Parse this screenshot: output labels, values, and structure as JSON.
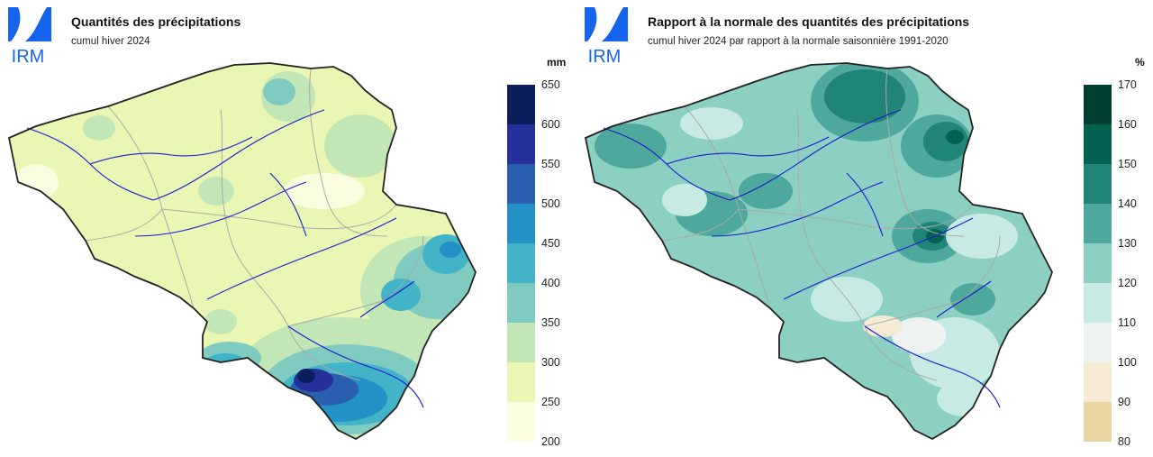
{
  "logo": {
    "text": "IRM",
    "color": "#1464f0"
  },
  "left": {
    "title": "Quantités des précipitations",
    "subtitle": "cumul hiver 2024",
    "unit": "mm",
    "legend": {
      "ticks": [
        "650",
        "600",
        "550",
        "500",
        "450",
        "400",
        "350",
        "300",
        "250",
        "200"
      ],
      "colors": [
        "#0b1f5c",
        "#26309a",
        "#2a5fb0",
        "#2292c6",
        "#43b4c8",
        "#80cbbf",
        "#c3e6b6",
        "#e9f6b4",
        "#fbfde0"
      ]
    },
    "map_colors": {
      "base": "#e9f6b4",
      "light": "#fbfde0",
      "mid": "#c3e6b6",
      "teal": "#80cbbf",
      "cyan": "#43b4c8",
      "blue": "#2292c6",
      "dark": "#2a5fb0",
      "navy": "#26309a",
      "deep": "#0b1f5c"
    }
  },
  "right": {
    "title": "Rapport à la normale des quantités des précipitations",
    "subtitle": "cumul hiver 2024 par rapport à la normale saisonnière 1991-2020",
    "unit": "%",
    "legend": {
      "ticks": [
        "170",
        "160",
        "150",
        "140",
        "130",
        "120",
        "110",
        "100",
        "90",
        "80"
      ],
      "colors": [
        "#013d30",
        "#03614f",
        "#208576",
        "#4ea99c",
        "#8ccfc3",
        "#c7ebe4",
        "#eef2f0",
        "#f5ebd5",
        "#e8d5a2"
      ]
    },
    "map_colors": {
      "base": "#8ccfc3",
      "light": "#c7ebe4",
      "pale": "#eef2f0",
      "tan": "#f5ebd5",
      "mid": "#4ea99c",
      "dark": "#208576",
      "deep": "#03614f",
      "deepest": "#013d30"
    }
  },
  "overlay_colors": {
    "border": "#222222",
    "rivers": "#1a1ad0",
    "provinces": "#aaaaaa"
  }
}
